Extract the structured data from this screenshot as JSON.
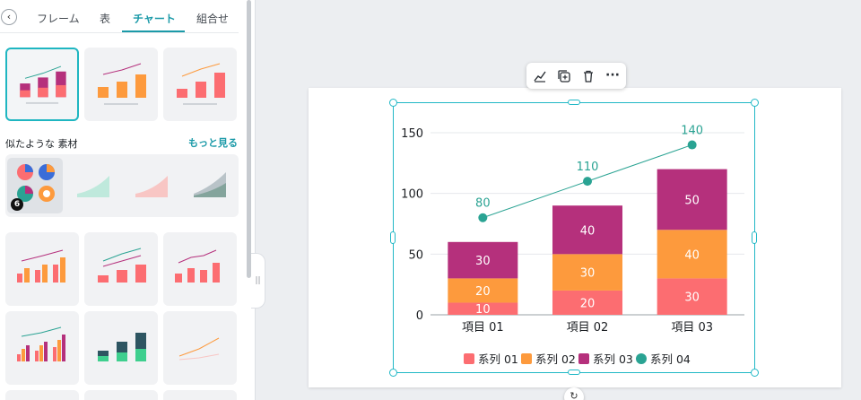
{
  "panel": {
    "tabs": [
      {
        "label": "フレーム"
      },
      {
        "label": "表"
      },
      {
        "label": "チャート"
      },
      {
        "label": "組合せ"
      }
    ],
    "section_title": "似たような 素材",
    "more_link": "もっと見る",
    "group_badge": "6"
  },
  "toolbar": {
    "icons": [
      "chart-edit-icon",
      "duplicate-icon",
      "trash-icon",
      "more-icon"
    ],
    "more_label": "···"
  },
  "colors": {
    "series01": "#fc6d71",
    "series02": "#fd9a3d",
    "series03": "#b5307c",
    "series04": "#2aa393",
    "selection": "#21b8c6",
    "accent": "#1b9aa8"
  },
  "chart_data": {
    "type": "bar",
    "stacked": true,
    "categories": [
      "項目 01",
      "項目 02",
      "項目 03"
    ],
    "series": [
      {
        "name": "系列 01",
        "type": "bar",
        "values": [
          10,
          20,
          30
        ]
      },
      {
        "name": "系列 02",
        "type": "bar",
        "values": [
          20,
          30,
          40
        ]
      },
      {
        "name": "系列 03",
        "type": "bar",
        "values": [
          30,
          40,
          50
        ]
      },
      {
        "name": "系列 04",
        "type": "line",
        "values": [
          80,
          110,
          140
        ]
      }
    ],
    "ylim": [
      0,
      150
    ],
    "yticks": [
      0,
      50,
      100,
      150
    ],
    "grid": true,
    "legend": "bottom"
  }
}
